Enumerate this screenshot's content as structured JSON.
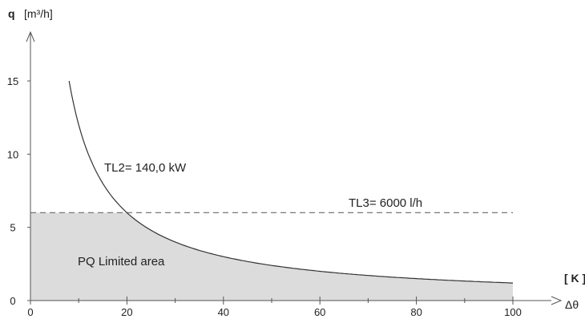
{
  "chart_data": {
    "type": "line",
    "title": "",
    "xlabel": "Δθ",
    "xunit": "[ K ]",
    "ylabel": "q",
    "yunit": "[m³/h]",
    "xlim": [
      0,
      100
    ],
    "ylim": [
      0,
      15
    ],
    "xticks": [
      0,
      20,
      40,
      60,
      80,
      100
    ],
    "yticks": [
      0,
      5,
      10,
      15
    ],
    "grid": false,
    "series": [
      {
        "name": "TL2= 140,0 kW",
        "kind": "curve",
        "x": [
          8,
          10,
          12,
          15,
          20,
          25,
          30,
          40,
          50,
          60,
          70,
          80,
          90,
          100
        ],
        "y": [
          15.0,
          12.0,
          10.0,
          8.0,
          6.0,
          4.8,
          4.0,
          3.0,
          2.4,
          2.0,
          1.7,
          1.5,
          1.3,
          1.2
        ]
      },
      {
        "name": "TL3= 6000 l/h",
        "kind": "dashed-limit",
        "x": [
          0,
          100
        ],
        "y": [
          6.0,
          6.0
        ]
      }
    ],
    "shaded_region": {
      "label": "PQ Limited area",
      "color": "#dcdcdc"
    },
    "annotations": [
      {
        "text": "TL2= 140,0 kW"
      },
      {
        "text": "TL3= 6000 l/h"
      },
      {
        "text": "PQ Limited area"
      }
    ]
  },
  "colors": {
    "axis": "#555555",
    "curve": "#333333",
    "fill": "#dcdcdc"
  }
}
